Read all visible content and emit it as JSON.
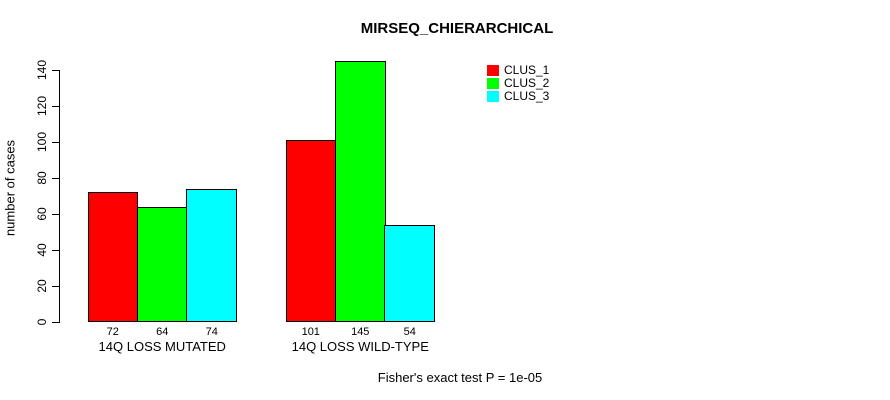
{
  "background_color": "#FFFFFF",
  "chart_data": {
    "type": "bar",
    "title": "MIRSEQ_CHIERARCHICAL",
    "ylabel": "number of cases",
    "xlabel": "",
    "ylim": [
      0,
      140
    ],
    "yticks": [
      0,
      20,
      40,
      60,
      80,
      100,
      120,
      140
    ],
    "categories": [
      "14Q LOSS MUTATED",
      "14Q LOSS WILD-TYPE"
    ],
    "series": [
      {
        "name": "CLUS_1",
        "color": "#FF0000",
        "values": [
          72,
          101
        ]
      },
      {
        "name": "CLUS_2",
        "color": "#00FF00",
        "values": [
          64,
          145
        ]
      },
      {
        "name": "CLUS_3",
        "color": "#00FFFF",
        "values": [
          74,
          54
        ]
      }
    ],
    "bar_value_labels": [
      [
        72,
        64,
        74
      ],
      [
        101,
        145,
        54
      ]
    ],
    "legend": {
      "position": "top-right",
      "entries": [
        "CLUS_1",
        "CLUS_2",
        "CLUS_3"
      ]
    },
    "annotation": "Fisher's exact test P = 1e-05",
    "grid": false,
    "axis_color": "#000000"
  }
}
